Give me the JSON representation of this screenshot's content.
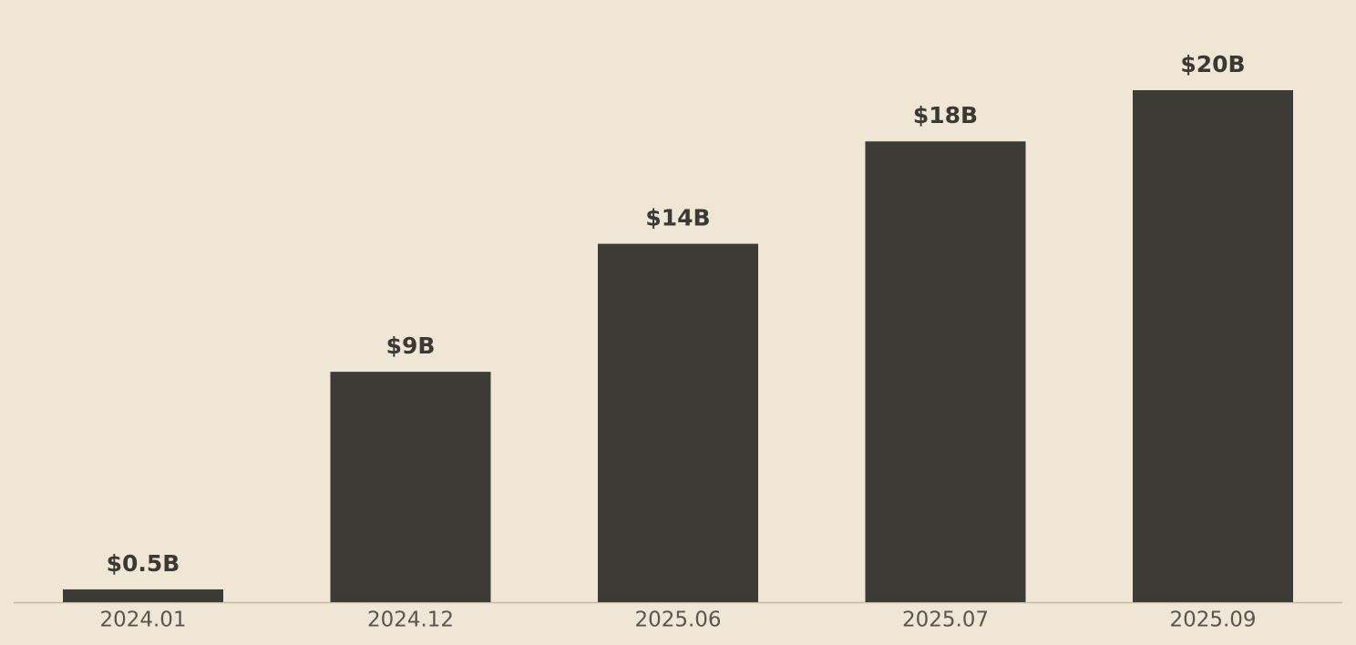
{
  "chart_data": {
    "type": "bar",
    "categories": [
      "2024.01",
      "2024.12",
      "2025.06",
      "2025.07",
      "2025.09"
    ],
    "values": [
      0.5,
      9,
      14,
      18,
      20
    ],
    "value_labels": [
      "$0.5B",
      "$9B",
      "$14B",
      "$18B",
      "$20B"
    ],
    "color": "#3d3b36"
  }
}
